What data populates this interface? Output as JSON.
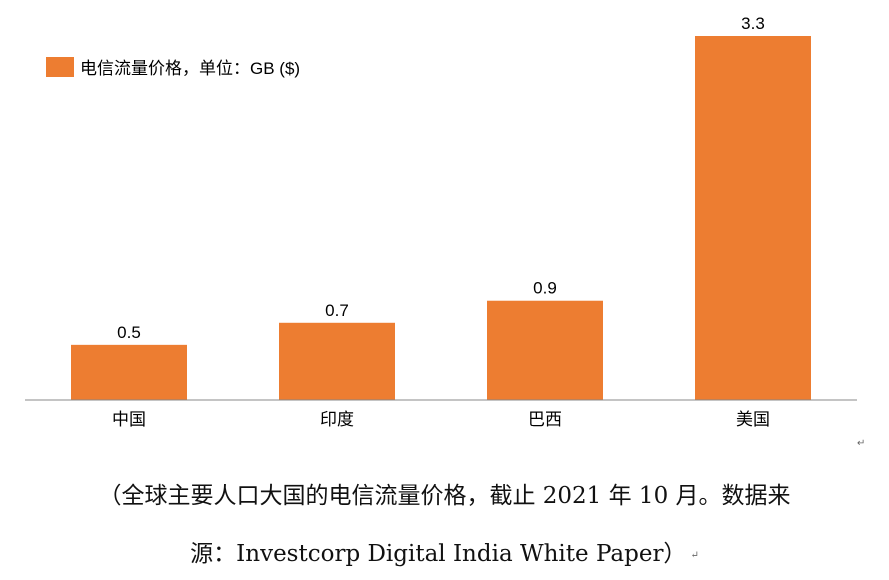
{
  "chart_data": {
    "type": "bar",
    "categories": [
      "中国",
      "印度",
      "巴西",
      "美国"
    ],
    "values": [
      0.5,
      0.7,
      0.9,
      3.3
    ],
    "value_labels": [
      "0.5",
      "0.7",
      "0.9",
      "3.3"
    ],
    "legend": "电信流量价格，单位：GB ($)",
    "legend_position": "top-left",
    "ylim": [
      0,
      3.3
    ],
    "color": "#ed7d31",
    "grid": false
  },
  "caption": {
    "line1": "（全球主要人口大国的电信流量价格，截止 2021 年 10 月。数据来",
    "line2": "源：Investcorp Digital India White Paper）"
  },
  "return_mark": "↵"
}
